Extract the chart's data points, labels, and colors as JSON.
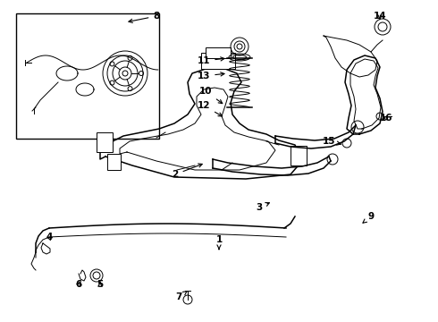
{
  "bg_color": "#ffffff",
  "line_color": "#000000",
  "label_color": "#000000",
  "figsize": [
    4.9,
    3.6
  ],
  "dpi": 100,
  "callouts": [
    [
      "1",
      245,
      92,
      245,
      78
    ],
    [
      "2",
      196,
      165,
      230,
      178
    ],
    [
      "3",
      290,
      128,
      305,
      135
    ],
    [
      "4",
      55,
      95,
      58,
      88
    ],
    [
      "5",
      112,
      42,
      112,
      48
    ],
    [
      "6",
      88,
      42,
      92,
      48
    ],
    [
      "7",
      200,
      28,
      210,
      35
    ],
    [
      "8",
      175,
      342,
      140,
      335
    ],
    [
      "9",
      415,
      118,
      405,
      110
    ],
    [
      "10",
      230,
      258,
      252,
      242
    ],
    [
      "11",
      228,
      292,
      255,
      295
    ],
    [
      "12",
      228,
      242,
      252,
      228
    ],
    [
      "13",
      228,
      275,
      255,
      278
    ],
    [
      "14",
      425,
      342,
      425,
      335
    ],
    [
      "15",
      368,
      202,
      385,
      198
    ],
    [
      "16",
      432,
      228,
      425,
      228
    ]
  ]
}
